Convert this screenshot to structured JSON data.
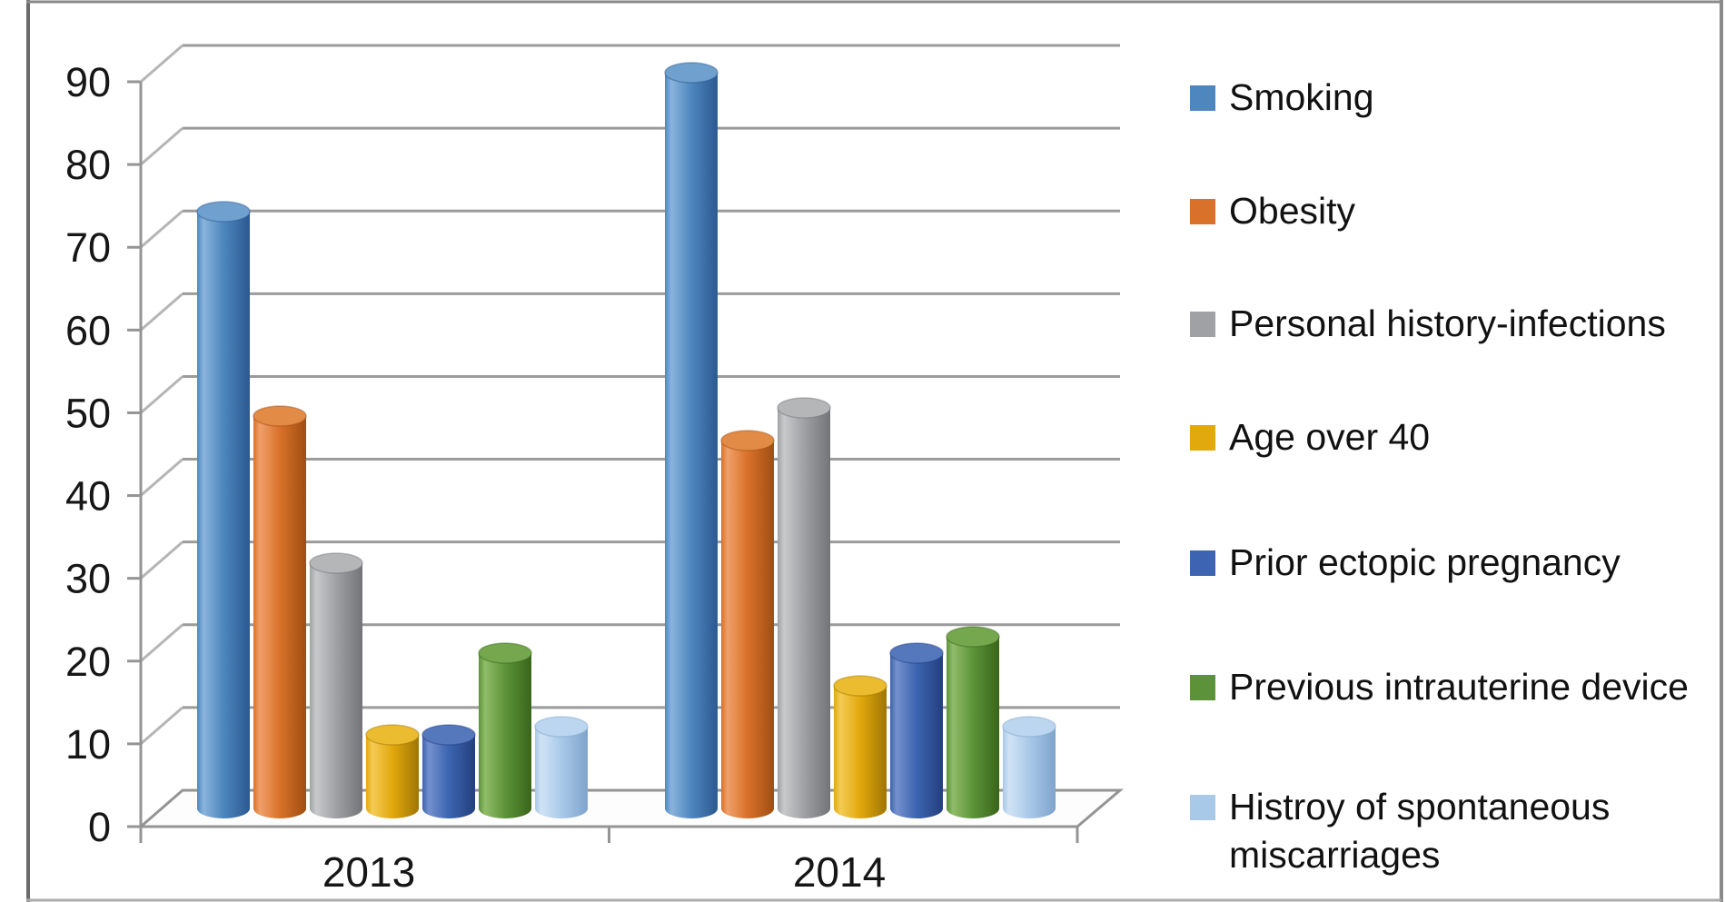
{
  "figure": {
    "background": "#ffffff",
    "border_color": "#8a8a8a",
    "left_border_color": "#6b6b6b",
    "bottom_border_color": "#ababab"
  },
  "chart_data": {
    "type": "bar",
    "subtype": "3d-cylinder",
    "title": "",
    "xlabel": "",
    "ylabel": "",
    "categories": [
      "2013",
      "2014"
    ],
    "series": [
      {
        "name": "Smoking",
        "values": [
          73,
          90
        ],
        "color": "#4E86BE",
        "light": "#8AB4DC",
        "dark": "#2B5990",
        "top": "#6FA0CE"
      },
      {
        "name": "Obesity",
        "values": [
          48,
          45
        ],
        "color": "#D9712A",
        "light": "#F0A06A",
        "dark": "#A04E12",
        "top": "#E18B47"
      },
      {
        "name": "Personal history-infections",
        "values": [
          30,
          49
        ],
        "color": "#A0A1A4",
        "light": "#C8C9CB",
        "dark": "#737477",
        "top": "#B5B6B8"
      },
      {
        "name": "Age over 40",
        "values": [
          9,
          15
        ],
        "color": "#E2A90D",
        "light": "#F4CB55",
        "dark": "#9F7503",
        "top": "#EBBC2F"
      },
      {
        "name": "Prior ectopic pregnancy",
        "values": [
          9,
          19
        ],
        "color": "#3C64B0",
        "light": "#7590CE",
        "dark": "#233F7E",
        "top": "#5578BD"
      },
      {
        "name": "Previous intrauterine device",
        "values": [
          19,
          21
        ],
        "color": "#5C9338",
        "light": "#90BD69",
        "dark": "#39651B",
        "top": "#74A74E"
      },
      {
        "name": "Histroy of spontaneous miscarriages",
        "values": [
          10,
          10
        ],
        "color": "#A9C9E9",
        "light": "#D0E3F5",
        "dark": "#7FA3CB",
        "top": "#BCD6EF"
      }
    ],
    "ylim": [
      0,
      90
    ],
    "y_ticks": [
      "0",
      "10",
      "20",
      "30",
      "40",
      "50",
      "60",
      "70",
      "80",
      "90"
    ],
    "grid": true,
    "legend_position": "right",
    "gridline_color": "#9B9B9B",
    "axis_color": "#949494",
    "text_color": "#161616"
  }
}
